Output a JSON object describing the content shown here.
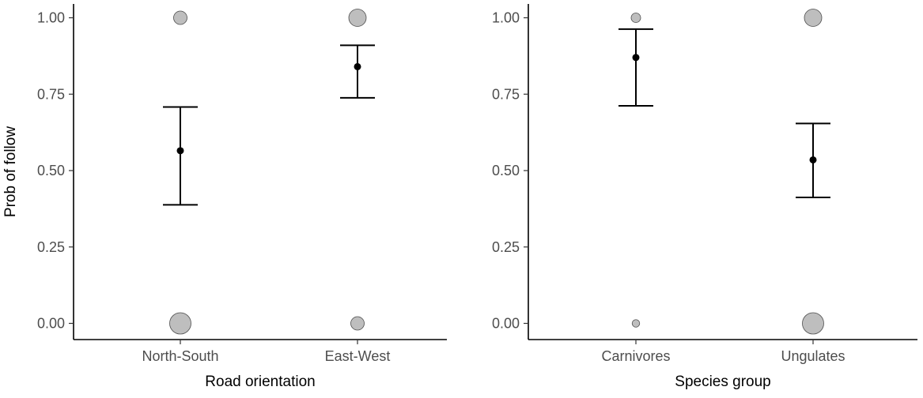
{
  "chart_data": [
    {
      "type": "scatter",
      "subtype": "point-estimate with error bars and proportional raw-data bubbles",
      "xlabel": "Road orientation",
      "ylabel": "Prob of follow",
      "ylim": [
        0,
        1
      ],
      "yticks": [
        0,
        0.25,
        0.5,
        0.75,
        1
      ],
      "ytick_labels": [
        "0.00",
        "0.25",
        "0.50",
        "0.75",
        "1.00"
      ],
      "categories": [
        "North-South",
        "East-West"
      ],
      "estimates": [
        0.565,
        0.84
      ],
      "lower": [
        0.388,
        0.738
      ],
      "upper": [
        0.708,
        0.91
      ],
      "bubbles": [
        {
          "category": "North-South",
          "y": 1,
          "size": 2
        },
        {
          "category": "North-South",
          "y": 0,
          "size": 4
        },
        {
          "category": "East-West",
          "y": 1,
          "size": 3
        },
        {
          "category": "East-West",
          "y": 0,
          "size": 2
        }
      ],
      "grid": false,
      "colors": {
        "bubble_fill": "#bebebe",
        "bubble_stroke": "#4d4d4d",
        "estimate": "#000000"
      }
    },
    {
      "type": "scatter",
      "subtype": "point-estimate with error bars and proportional raw-data bubbles",
      "xlabel": "Species group",
      "ylabel": "",
      "ylim": [
        0,
        1
      ],
      "yticks": [
        0,
        0.25,
        0.5,
        0.75,
        1
      ],
      "ytick_labels": [
        "0.00",
        "0.25",
        "0.50",
        "0.75",
        "1.00"
      ],
      "categories": [
        "Carnivores",
        "Ungulates"
      ],
      "estimates": [
        0.87,
        0.535
      ],
      "lower": [
        0.712,
        0.412
      ],
      "upper": [
        0.963,
        0.654
      ],
      "bubbles": [
        {
          "category": "Carnivores",
          "y": 1,
          "size": 1
        },
        {
          "category": "Carnivores",
          "y": 0,
          "size": 0.5
        },
        {
          "category": "Ungulates",
          "y": 1,
          "size": 3
        },
        {
          "category": "Ungulates",
          "y": 0,
          "size": 4
        }
      ],
      "grid": false,
      "colors": {
        "bubble_fill": "#bebebe",
        "bubble_stroke": "#4d4d4d",
        "estimate": "#000000"
      }
    }
  ]
}
